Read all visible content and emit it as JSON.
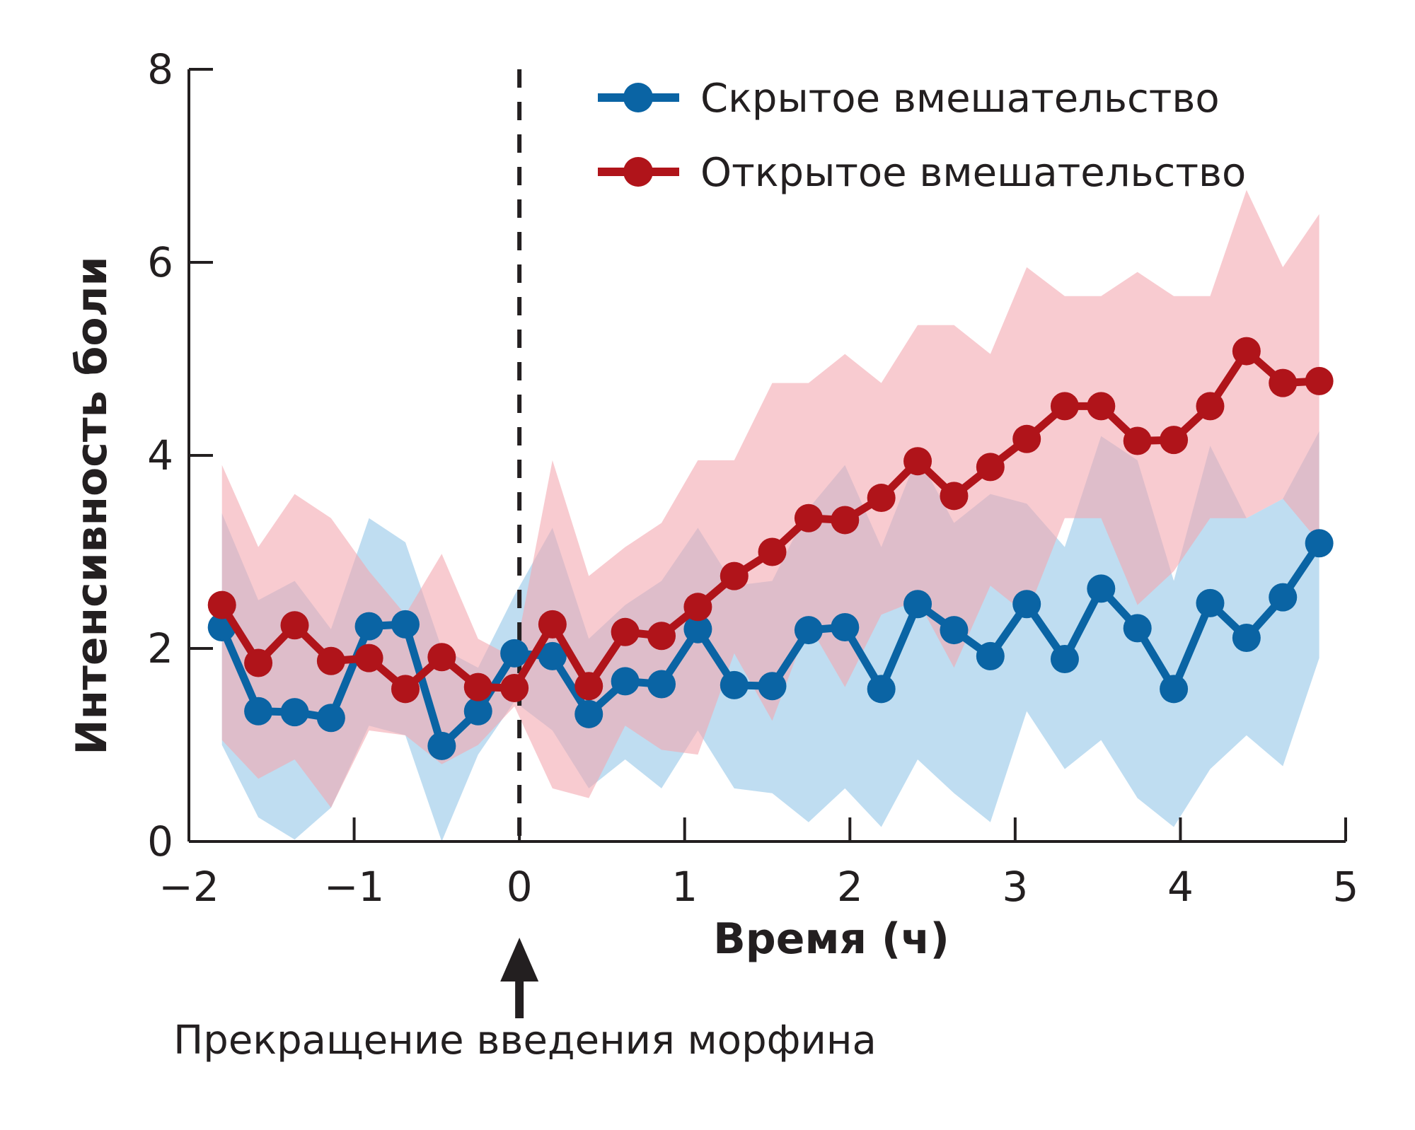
{
  "chart_data": {
    "type": "line",
    "title": "",
    "xlabel": "Время (ч)",
    "ylabel": "Интенсивность боли",
    "xlim": [
      -2,
      5
    ],
    "ylim": [
      0,
      8
    ],
    "x_ticks": [
      "−2",
      "−1",
      "0",
      "1",
      "2",
      "3",
      "4",
      "5"
    ],
    "y_ticks": [
      "0",
      "2",
      "4",
      "6",
      "8"
    ],
    "vline_x": 0,
    "annotation": "Прекращение введения морфина",
    "legend_position": "top-right",
    "colors": {
      "hidden": "#0a64a4",
      "hidden_band": "#aad2ec",
      "open": "#b0141a",
      "open_band": "#f4a9b1",
      "axis": "#231f20"
    },
    "x": [
      -1.8,
      -1.58,
      -1.36,
      -1.14,
      -0.91,
      -0.69,
      -0.47,
      -0.25,
      -0.03,
      0.2,
      0.42,
      0.64,
      0.86,
      1.08,
      1.3,
      1.53,
      1.75,
      1.97,
      2.19,
      2.41,
      2.63,
      2.85,
      3.07,
      3.3,
      3.52,
      3.74,
      3.96,
      4.18,
      4.4,
      4.62,
      4.84
    ],
    "series": [
      {
        "name": "Скрытое вмешательство",
        "color_key": "hidden",
        "values": [
          2.22,
          1.35,
          1.34,
          1.28,
          2.23,
          2.25,
          0.99,
          1.35,
          1.95,
          1.92,
          1.32,
          1.66,
          1.63,
          2.2,
          1.62,
          1.61,
          2.19,
          2.22,
          1.58,
          2.46,
          2.19,
          1.92,
          2.46,
          1.89,
          2.62,
          2.21,
          1.58,
          2.47,
          2.11,
          2.53,
          3.09
        ],
        "lower": [
          1.0,
          0.25,
          0.02,
          0.35,
          1.2,
          1.1,
          0.0,
          0.9,
          1.45,
          1.15,
          0.55,
          0.85,
          0.55,
          1.15,
          0.55,
          0.5,
          0.2,
          0.55,
          0.15,
          0.85,
          0.5,
          0.2,
          1.35,
          0.75,
          1.05,
          0.45,
          0.15,
          0.75,
          1.1,
          0.78,
          1.9
        ],
        "upper": [
          3.4,
          2.5,
          2.7,
          2.2,
          3.35,
          3.1,
          2.0,
          1.8,
          2.55,
          3.25,
          2.1,
          2.45,
          2.7,
          3.25,
          2.65,
          2.7,
          3.45,
          3.9,
          3.05,
          4.0,
          3.3,
          3.6,
          3.5,
          3.05,
          4.2,
          3.95,
          2.7,
          4.1,
          3.35,
          3.55,
          4.25
        ]
      },
      {
        "name": "Открытое вмешательство",
        "color_key": "open",
        "values": [
          2.45,
          1.85,
          2.24,
          1.87,
          1.9,
          1.58,
          1.91,
          1.6,
          1.59,
          2.25,
          1.61,
          2.17,
          2.13,
          2.43,
          2.75,
          3.0,
          3.35,
          3.33,
          3.56,
          3.94,
          3.58,
          3.88,
          4.17,
          4.51,
          4.51,
          4.15,
          4.16,
          4.51,
          5.08,
          4.75,
          4.77
        ],
        "lower": [
          1.05,
          0.65,
          0.85,
          0.35,
          1.15,
          1.1,
          0.8,
          1.0,
          1.4,
          0.55,
          0.45,
          1.2,
          0.95,
          0.9,
          1.95,
          1.25,
          2.25,
          1.6,
          2.35,
          2.5,
          1.8,
          2.65,
          2.35,
          3.35,
          3.35,
          2.45,
          2.8,
          3.35,
          3.35,
          3.55,
          3.1
        ],
        "upper": [
          3.9,
          3.05,
          3.6,
          3.35,
          2.8,
          2.35,
          2.98,
          2.1,
          1.9,
          3.95,
          2.75,
          3.05,
          3.3,
          3.95,
          3.95,
          4.75,
          4.75,
          5.05,
          4.75,
          5.35,
          5.35,
          5.05,
          5.95,
          5.65,
          5.65,
          5.9,
          5.65,
          5.65,
          6.75,
          5.95,
          6.5
        ]
      }
    ]
  }
}
